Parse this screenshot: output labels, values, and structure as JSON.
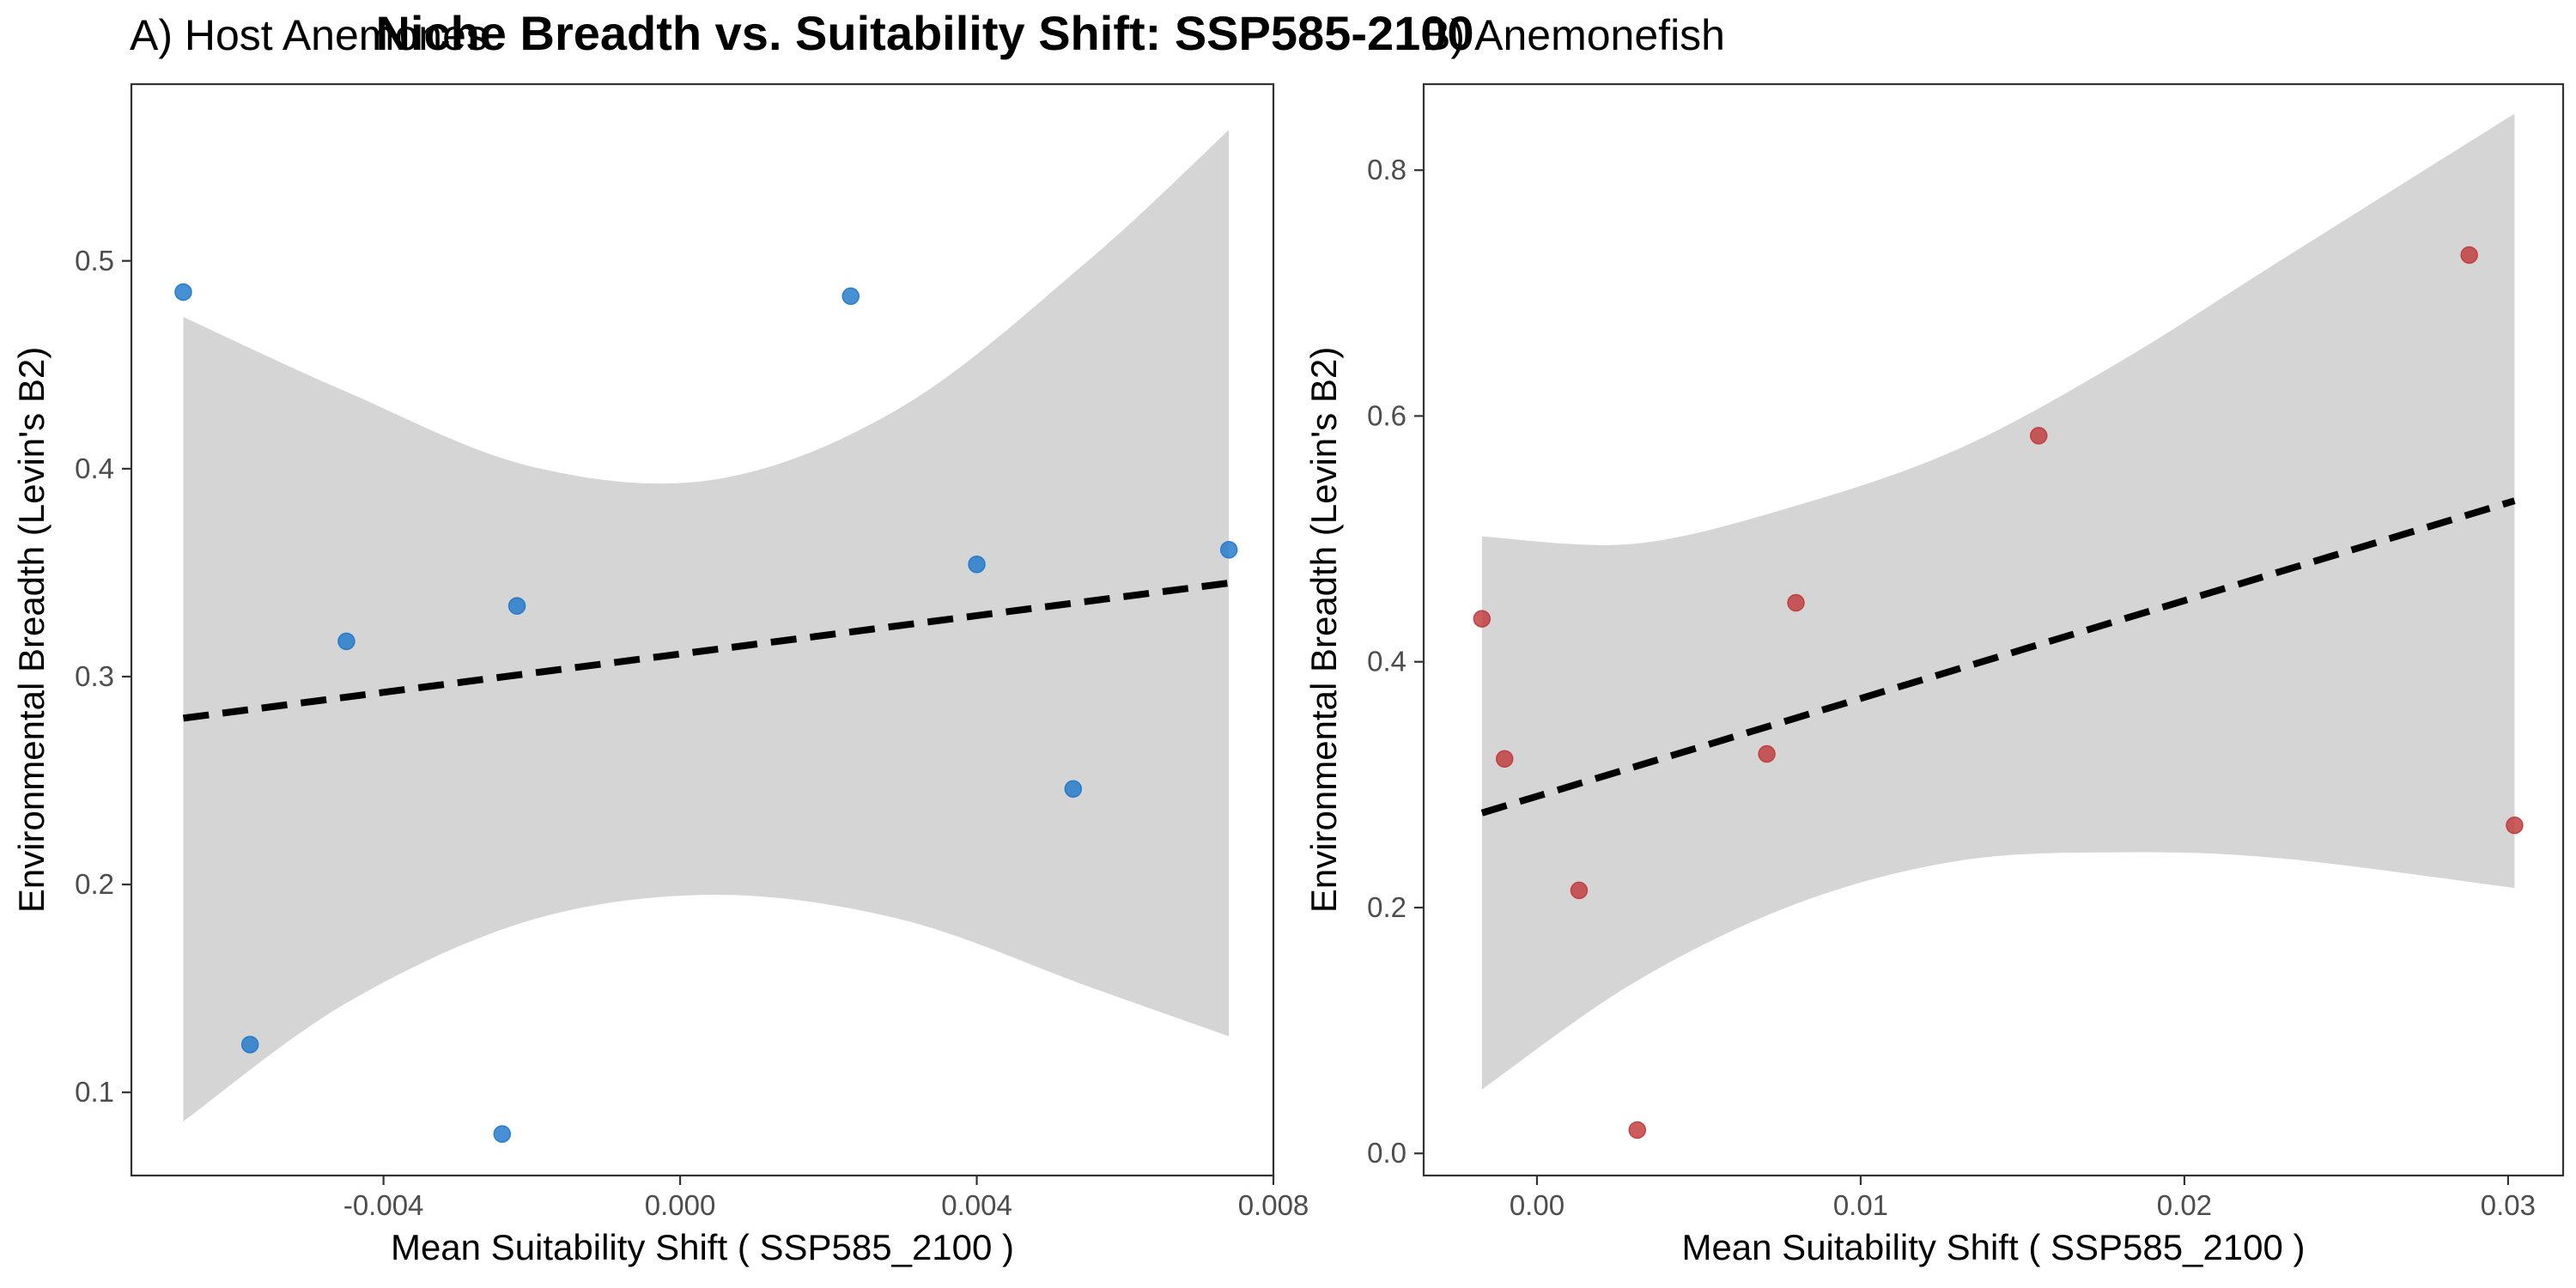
{
  "figure": {
    "title": "Niche Breadth vs. Suitability Shift: SSP585-2100"
  },
  "chart_data": [
    {
      "type": "scatter",
      "panel_title": "A) Host Anemones",
      "xlabel": "Mean Suitability Shift ( SSP585_2100 )",
      "ylabel": "Environmental Breadth (Levin's B2)",
      "xlim": [
        -0.0074,
        0.008
      ],
      "ylim": [
        0.06,
        0.585
      ],
      "x_ticks": [
        -0.004,
        0.0,
        0.004,
        0.008
      ],
      "x_tick_labels": [
        "-0.004",
        "0.000",
        "0.004",
        "0.008"
      ],
      "y_ticks": [
        0.1,
        0.2,
        0.3,
        0.4,
        0.5
      ],
      "y_tick_labels": [
        "0.1",
        "0.2",
        "0.3",
        "0.4",
        "0.5"
      ],
      "grid": false,
      "point_color": "#1f77c9",
      "points": [
        {
          "x": -0.0067,
          "y": 0.485
        },
        {
          "x": -0.0058,
          "y": 0.123
        },
        {
          "x": -0.0045,
          "y": 0.317
        },
        {
          "x": -0.0024,
          "y": 0.08
        },
        {
          "x": -0.0022,
          "y": 0.334
        },
        {
          "x": 0.0023,
          "y": 0.483
        },
        {
          "x": 0.004,
          "y": 0.354
        },
        {
          "x": 0.0053,
          "y": 0.246
        },
        {
          "x": 0.0074,
          "y": 0.361
        }
      ],
      "fit": {
        "x": [
          -0.0067,
          0.0074
        ],
        "y": [
          0.28,
          0.345
        ]
      },
      "ribbon": {
        "x": [
          -0.0067,
          -0.0045,
          -0.002,
          0.0005,
          0.003,
          0.0055,
          0.0074
        ],
        "upper": [
          0.473,
          0.437,
          0.401,
          0.395,
          0.43,
          0.5,
          0.563
        ],
        "lower": [
          0.086,
          0.143,
          0.183,
          0.195,
          0.183,
          0.151,
          0.127
        ]
      }
    },
    {
      "type": "scatter",
      "panel_title": "B) Anemonefish",
      "xlabel": "Mean Suitability Shift ( SSP585_2100 )",
      "ylabel": "Environmental Breadth (Levin's B2)",
      "xlim": [
        -0.0035,
        0.0317
      ],
      "ylim": [
        -0.018,
        0.87
      ],
      "x_ticks": [
        0.0,
        0.01,
        0.02,
        0.03
      ],
      "x_tick_labels": [
        "0.00",
        "0.01",
        "0.02",
        "0.03"
      ],
      "y_ticks": [
        0.0,
        0.2,
        0.4,
        0.6,
        0.8
      ],
      "y_tick_labels": [
        "0.0",
        "0.2",
        "0.4",
        "0.6",
        "0.8"
      ],
      "grid": false,
      "point_color": "#c0393b",
      "points": [
        {
          "x": -0.0017,
          "y": 0.435
        },
        {
          "x": -0.001,
          "y": 0.321
        },
        {
          "x": 0.0013,
          "y": 0.214
        },
        {
          "x": 0.0031,
          "y": 0.019
        },
        {
          "x": 0.0071,
          "y": 0.325
        },
        {
          "x": 0.008,
          "y": 0.448
        },
        {
          "x": 0.0155,
          "y": 0.584
        },
        {
          "x": 0.0288,
          "y": 0.731
        },
        {
          "x": 0.0302,
          "y": 0.267
        }
      ],
      "fit": {
        "x": [
          -0.0017,
          0.0302
        ],
        "y": [
          0.277,
          0.531
        ]
      },
      "ribbon": {
        "x": [
          -0.0017,
          0.003,
          0.008,
          0.013,
          0.018,
          0.023,
          0.0302
        ],
        "upper": [
          0.502,
          0.496,
          0.527,
          0.573,
          0.644,
          0.727,
          0.846
        ],
        "lower": [
          0.052,
          0.139,
          0.203,
          0.238,
          0.245,
          0.24,
          0.216
        ]
      }
    }
  ]
}
